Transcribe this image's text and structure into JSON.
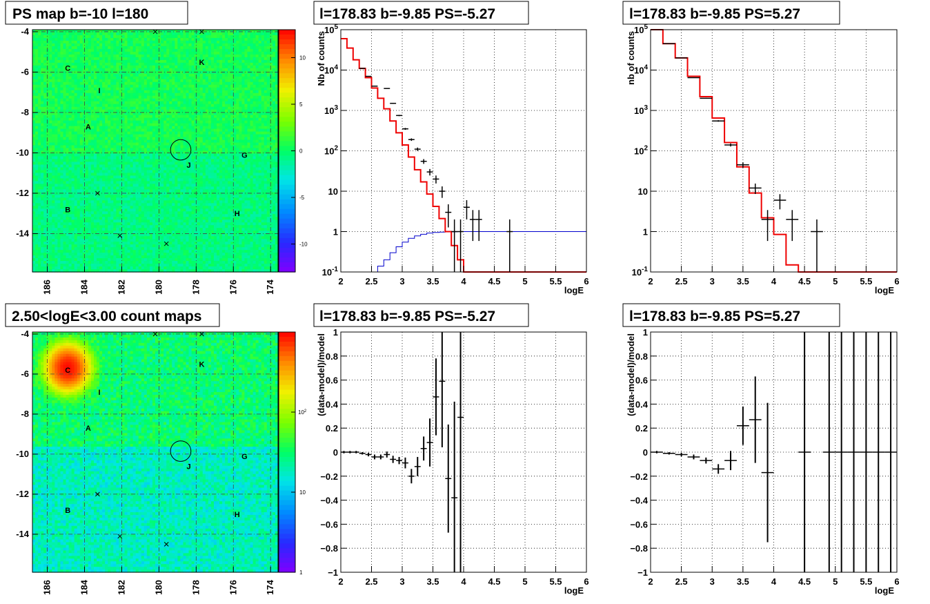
{
  "chart_data": [
    {
      "type": "heatmap",
      "title": "PS map b=-10 l=180",
      "x_ticks": [
        "186",
        "184",
        "182",
        "180",
        "178",
        "176",
        "174"
      ],
      "y_ticks": [
        "-4",
        "-6",
        "-8",
        "-10",
        "-12",
        "-14"
      ],
      "xlim": [
        186.8,
        173.6
      ],
      "ylim": [
        -15.9,
        -3.9
      ],
      "x_reverse": true,
      "scale": "linear",
      "palette_ticks": [
        "10",
        "5",
        "0",
        "-5",
        "-10"
      ],
      "zlim": [
        -13,
        13
      ],
      "background_value": 0,
      "hotspots": [],
      "circle": {
        "l": 178.83,
        "b": -9.85,
        "r": 0.55
      },
      "sources": [
        {
          "label": "C",
          "l": 184.9,
          "b": -5.8
        },
        {
          "label": "K",
          "l": 177.7,
          "b": -5.5
        },
        {
          "label": "I",
          "l": 183.2,
          "b": -6.9
        },
        {
          "label": "A",
          "l": 183.8,
          "b": -8.7
        },
        {
          "label": "G",
          "l": 175.4,
          "b": -10.1
        },
        {
          "label": "J",
          "l": 178.4,
          "b": -10.6
        },
        {
          "label": "B",
          "l": 184.9,
          "b": -12.8
        },
        {
          "label": "H",
          "l": 175.8,
          "b": -13.0
        }
      ],
      "crosses": [
        {
          "l": 180.2,
          "b": -4.0
        },
        {
          "l": 177.7,
          "b": -4.0
        },
        {
          "l": 183.3,
          "b": -12.0
        },
        {
          "l": 182.1,
          "b": -14.1
        },
        {
          "l": 179.6,
          "b": -14.5
        }
      ]
    },
    {
      "type": "line",
      "title": "l=178.83 b=-9.85 PS=-5.27",
      "xlabel": "logE",
      "ylabel": "Nb of counts",
      "xlim": [
        2,
        6
      ],
      "ylim": [
        0.1,
        100000
      ],
      "yscale": "log",
      "x_ticks": [
        "2",
        "2.5",
        "3",
        "3.5",
        "4",
        "4.5",
        "5",
        "5.5",
        "6"
      ],
      "y_ticks": [
        "10^-1",
        "1",
        "10",
        "10^2",
        "10^3",
        "10^4",
        "10^5"
      ],
      "bins": 40,
      "model_red": [
        60000,
        35000,
        18000,
        11000,
        6500,
        3600,
        2000,
        1100,
        550,
        280,
        140,
        70,
        34,
        17,
        8.5,
        4.2,
        2.1,
        1.0,
        0.45,
        0.2,
        0.08,
        0.04,
        0.03,
        0.02,
        0.015,
        0.015,
        0.015,
        0.015,
        0.015,
        0.015,
        0.015,
        0.015,
        0.015,
        0.015,
        0.015,
        0.015,
        0.015,
        0.015,
        0.015,
        0.015
      ],
      "model_blue": [
        0.1,
        0.1,
        0.1,
        0.1,
        0.1,
        0.1,
        0.14,
        0.2,
        0.3,
        0.42,
        0.55,
        0.68,
        0.78,
        0.86,
        0.92,
        0.95,
        0.97,
        0.98,
        0.99,
        1,
        1,
        1,
        1,
        1,
        1,
        1,
        1,
        1,
        1,
        1,
        1,
        1,
        1,
        1,
        1,
        1,
        1,
        1,
        1,
        1
      ],
      "data_points": [
        {
          "x": 2.35,
          "y": 11000
        },
        {
          "x": 2.45,
          "y": 7000
        },
        {
          "x": 2.55,
          "y": 4000
        },
        {
          "x": 2.75,
          "y": 3500
        },
        {
          "x": 2.85,
          "y": 1500
        },
        {
          "x": 2.95,
          "y": 750
        },
        {
          "x": 3.05,
          "y": 350
        },
        {
          "x": 3.15,
          "y": 190
        },
        {
          "x": 3.25,
          "y": 110
        },
        {
          "x": 3.35,
          "y": 55
        },
        {
          "x": 3.45,
          "y": 30
        },
        {
          "x": 3.55,
          "y": 20
        },
        {
          "x": 3.65,
          "y": 10
        },
        {
          "x": 3.75,
          "y": 3
        },
        {
          "x": 3.85,
          "y": 1
        },
        {
          "x": 3.95,
          "y": 1
        },
        {
          "x": 4.05,
          "y": 4
        },
        {
          "x": 4.15,
          "y": 2
        },
        {
          "x": 4.25,
          "y": 2
        },
        {
          "x": 4.75,
          "y": 1
        }
      ]
    },
    {
      "type": "line",
      "title": "l=178.83 b=-9.85 PS=5.27",
      "xlabel": "logE",
      "ylabel": "nb of counts",
      "xlim": [
        2,
        6
      ],
      "ylim": [
        0.1,
        100000
      ],
      "yscale": "log",
      "x_ticks": [
        "2",
        "2.5",
        "3",
        "3.5",
        "4",
        "4.5",
        "5",
        "5.5",
        "6"
      ],
      "y_ticks": [
        "10^-1",
        "1",
        "10",
        "10^2",
        "10^3",
        "10^4",
        "10^5"
      ],
      "bins": 20,
      "model_red": [
        100000,
        45000,
        20000,
        7000,
        2200,
        650,
        160,
        40,
        9,
        2.2,
        0.85,
        0.15,
        0.07,
        0.06,
        0.06,
        0.06,
        0.06,
        0.06,
        0.06,
        0.06
      ],
      "data_points": [
        {
          "x": 2.1,
          "y": 100000
        },
        {
          "x": 2.3,
          "y": 45000
        },
        {
          "x": 2.5,
          "y": 20000
        },
        {
          "x": 2.7,
          "y": 6500
        },
        {
          "x": 2.9,
          "y": 2000
        },
        {
          "x": 3.1,
          "y": 550
        },
        {
          "x": 3.3,
          "y": 140
        },
        {
          "x": 3.5,
          "y": 45
        },
        {
          "x": 3.7,
          "y": 12
        },
        {
          "x": 3.9,
          "y": 2
        },
        {
          "x": 4.1,
          "y": 6
        },
        {
          "x": 4.3,
          "y": 2
        },
        {
          "x": 4.7,
          "y": 1
        }
      ]
    },
    {
      "type": "heatmap",
      "title": "2.50<logE<3.00 count maps",
      "x_ticks": [
        "186",
        "184",
        "182",
        "180",
        "178",
        "176",
        "174"
      ],
      "y_ticks": [
        "-4",
        "-6",
        "-8",
        "-10",
        "-12",
        "-14"
      ],
      "xlim": [
        186.8,
        173.6
      ],
      "ylim": [
        -15.9,
        -3.9
      ],
      "x_reverse": true,
      "scale": "log",
      "palette_ticks": [
        "10^2",
        "10",
        "1"
      ],
      "zlim": [
        1,
        1000
      ],
      "background_value": 18,
      "hotspots": [
        {
          "l": 184.9,
          "b": -5.7,
          "peak": 900,
          "sigma": 0.6
        }
      ],
      "circle": {
        "l": 178.83,
        "b": -9.85,
        "r": 0.55
      },
      "sources": [
        {
          "label": "C",
          "l": 184.9,
          "b": -5.8
        },
        {
          "label": "K",
          "l": 177.7,
          "b": -5.5
        },
        {
          "label": "I",
          "l": 183.2,
          "b": -6.9
        },
        {
          "label": "A",
          "l": 183.8,
          "b": -8.7
        },
        {
          "label": "G",
          "l": 175.4,
          "b": -10.1
        },
        {
          "label": "J",
          "l": 178.4,
          "b": -10.6
        },
        {
          "label": "B",
          "l": 184.9,
          "b": -12.8
        },
        {
          "label": "H",
          "l": 175.8,
          "b": -13.0
        }
      ],
      "crosses": [
        {
          "l": 180.2,
          "b": -4.0
        },
        {
          "l": 177.7,
          "b": -4.0
        },
        {
          "l": 183.3,
          "b": -12.0
        },
        {
          "l": 182.1,
          "b": -14.1
        },
        {
          "l": 179.6,
          "b": -14.5
        }
      ]
    },
    {
      "type": "scatter",
      "title": "l=178.83 b=-9.85 PS=-5.27",
      "xlabel": "logE",
      "ylabel": "(data-model)/model",
      "xlim": [
        2,
        6
      ],
      "ylim": [
        -1,
        1
      ],
      "x_ticks": [
        "2",
        "2.5",
        "3",
        "3.5",
        "4",
        "4.5",
        "5",
        "5.5",
        "6"
      ],
      "y_ticks": [
        "1",
        "0.8",
        "0.6",
        "0.4",
        "0.2",
        "0",
        "-0.2",
        "-0.4",
        "-0.6",
        "-0.8",
        "-1"
      ],
      "half_width": 0.05,
      "points": [
        {
          "x": 2.05,
          "y": 0,
          "err": 0.01
        },
        {
          "x": 2.15,
          "y": 0,
          "err": 0.01
        },
        {
          "x": 2.25,
          "y": 0,
          "err": 0.01
        },
        {
          "x": 2.35,
          "y": -0.01,
          "err": 0.01
        },
        {
          "x": 2.45,
          "y": -0.02,
          "err": 0.015
        },
        {
          "x": 2.55,
          "y": -0.04,
          "err": 0.02
        },
        {
          "x": 2.65,
          "y": -0.04,
          "err": 0.02
        },
        {
          "x": 2.75,
          "y": -0.02,
          "err": 0.025
        },
        {
          "x": 2.85,
          "y": -0.06,
          "err": 0.03
        },
        {
          "x": 2.95,
          "y": -0.07,
          "err": 0.03
        },
        {
          "x": 3.05,
          "y": -0.09,
          "err": 0.045
        },
        {
          "x": 3.15,
          "y": -0.2,
          "err": 0.06
        },
        {
          "x": 3.25,
          "y": -0.12,
          "err": 0.08
        },
        {
          "x": 3.35,
          "y": 0.03,
          "err": 0.1
        },
        {
          "x": 3.45,
          "y": 0.08,
          "err": 0.2
        },
        {
          "x": 3.55,
          "y": 0.46,
          "err": 0.32
        },
        {
          "x": 3.65,
          "y": 0.59,
          "err": 0.55
        },
        {
          "x": 3.75,
          "y": -0.22,
          "err": 0.45
        },
        {
          "x": 3.85,
          "y": -0.38,
          "err": 0.8
        },
        {
          "x": 3.95,
          "y": 0.29,
          "err": 1.5
        }
      ]
    },
    {
      "type": "scatter",
      "title": "l=178.83 b=-9.85 PS=5.27",
      "xlabel": "logE",
      "ylabel": "(data-model)/model",
      "xlim": [
        2,
        6
      ],
      "ylim": [
        -1,
        1
      ],
      "x_ticks": [
        "2",
        "2.5",
        "3",
        "3.5",
        "4",
        "4.5",
        "5",
        "5.5",
        "6"
      ],
      "y_ticks": [
        "1",
        "0.8",
        "0.6",
        "0.4",
        "0.2",
        "0",
        "-0.2",
        "-0.4",
        "-0.6",
        "-0.8",
        "-1"
      ],
      "half_width": 0.1,
      "points": [
        {
          "x": 2.1,
          "y": 0,
          "err": 0.01
        },
        {
          "x": 2.3,
          "y": -0.01,
          "err": 0.01
        },
        {
          "x": 2.5,
          "y": -0.02,
          "err": 0.015
        },
        {
          "x": 2.7,
          "y": -0.04,
          "err": 0.02
        },
        {
          "x": 2.9,
          "y": -0.07,
          "err": 0.025
        },
        {
          "x": 3.1,
          "y": -0.14,
          "err": 0.04
        },
        {
          "x": 3.3,
          "y": -0.07,
          "err": 0.08
        },
        {
          "x": 3.5,
          "y": 0.22,
          "err": 0.16
        },
        {
          "x": 3.7,
          "y": 0.27,
          "err": 0.36
        },
        {
          "x": 3.9,
          "y": -0.17,
          "err": 0.58
        },
        {
          "x": 4.5,
          "y": 0,
          "err": 9
        },
        {
          "x": 4.9,
          "y": 0,
          "err": 9
        },
        {
          "x": 5.1,
          "y": 0,
          "err": 9
        },
        {
          "x": 5.3,
          "y": 0,
          "err": 9
        },
        {
          "x": 5.5,
          "y": 0,
          "err": 9
        },
        {
          "x": 5.7,
          "y": 0,
          "err": 9
        },
        {
          "x": 5.9,
          "y": 0,
          "err": 9
        }
      ]
    }
  ]
}
